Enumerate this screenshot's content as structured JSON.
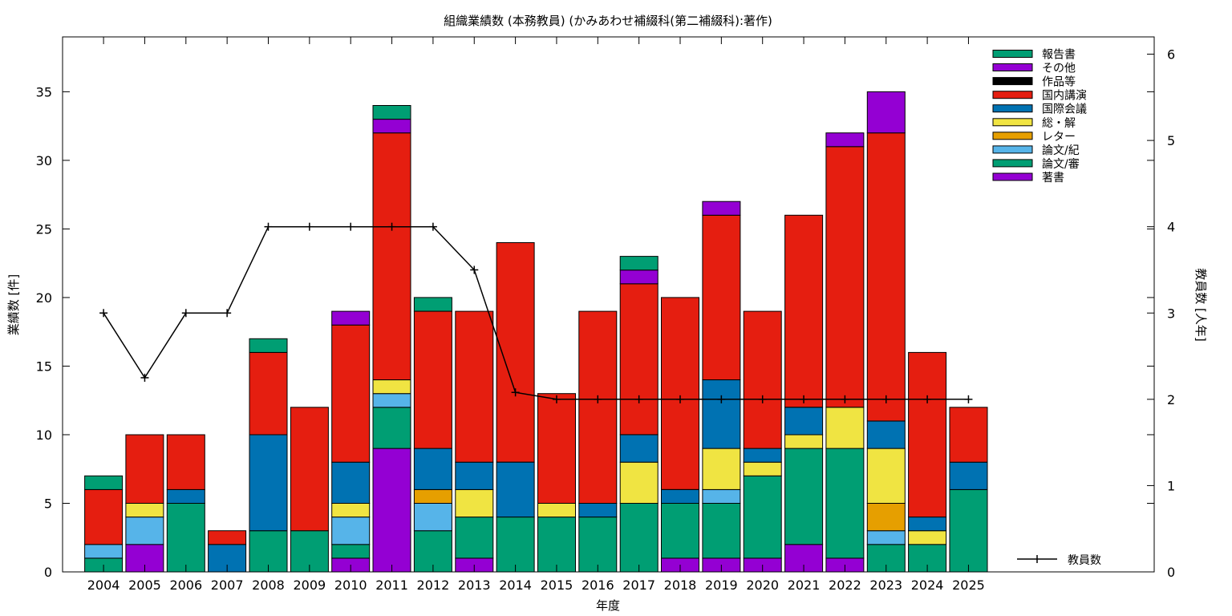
{
  "chart_data": {
    "type": "bar",
    "stacked": true,
    "title": "組織業績数 (本務教員) (かみあわせ補綴科(第二補綴科):著作)",
    "xlabel": "年度",
    "ylabel": "業績数 [件]",
    "y2label": "教員数 [人年]",
    "ylim": [
      0,
      39
    ],
    "y2lim": [
      0,
      6.2
    ],
    "yticks": [
      "0",
      "5",
      "10",
      "15",
      "20",
      "25",
      "30",
      "35"
    ],
    "y2ticks": [
      "0",
      "1",
      "2",
      "3",
      "4",
      "5",
      "6"
    ],
    "categories": [
      "2004",
      "2005",
      "2006",
      "2007",
      "2008",
      "2009",
      "2010",
      "2011",
      "2012",
      "2013",
      "2014",
      "2015",
      "2016",
      "2017",
      "2018",
      "2019",
      "2020",
      "2021",
      "2022",
      "2023",
      "2024",
      "2025"
    ],
    "legend_position": "top-right",
    "series": [
      {
        "name": "著書",
        "color": "#9400d3",
        "values": [
          0,
          2,
          0,
          0,
          0,
          0,
          1,
          9,
          0,
          1,
          0,
          0,
          0,
          0,
          1,
          1,
          1,
          2,
          1,
          0,
          0,
          0
        ]
      },
      {
        "name": "論文/審",
        "color": "#009e73",
        "values": [
          1,
          0,
          5,
          0,
          3,
          3,
          1,
          3,
          3,
          3,
          4,
          4,
          4,
          5,
          4,
          4,
          6,
          7,
          8,
          2,
          2,
          6
        ]
      },
      {
        "name": "論文/紀",
        "color": "#56b4e9",
        "values": [
          1,
          2,
          0,
          0,
          0,
          0,
          2,
          1,
          2,
          0,
          0,
          0,
          0,
          0,
          0,
          1,
          0,
          0,
          0,
          1,
          0,
          0
        ]
      },
      {
        "name": "レター",
        "color": "#e69f00",
        "values": [
          0,
          0,
          0,
          0,
          0,
          0,
          0,
          0,
          1,
          0,
          0,
          0,
          0,
          0,
          0,
          0,
          0,
          0,
          0,
          2,
          0,
          0
        ]
      },
      {
        "name": "総・解",
        "color": "#f0e442",
        "values": [
          0,
          1,
          0,
          0,
          0,
          0,
          1,
          1,
          0,
          2,
          0,
          1,
          0,
          3,
          0,
          3,
          1,
          1,
          3,
          4,
          1,
          0
        ]
      },
      {
        "name": "国際会議",
        "color": "#0072b2",
        "values": [
          0,
          0,
          1,
          2,
          7,
          0,
          3,
          0,
          3,
          2,
          4,
          0,
          1,
          2,
          1,
          5,
          1,
          2,
          0,
          2,
          1,
          2
        ]
      },
      {
        "name": "国内講演",
        "color": "#e51e10",
        "values": [
          4,
          5,
          4,
          1,
          6,
          9,
          10,
          18,
          10,
          11,
          16,
          8,
          14,
          11,
          14,
          12,
          10,
          14,
          19,
          21,
          12,
          4
        ]
      },
      {
        "name": "作品等",
        "color": "#000000",
        "values": [
          0,
          0,
          0,
          0,
          0,
          0,
          0,
          0,
          0,
          0,
          0,
          0,
          0,
          0,
          0,
          0,
          0,
          0,
          0,
          0,
          0,
          0
        ]
      },
      {
        "name": "その他",
        "color": "#9400d3",
        "values": [
          0,
          0,
          0,
          0,
          0,
          0,
          1,
          1,
          0,
          0,
          0,
          0,
          0,
          1,
          0,
          1,
          0,
          0,
          1,
          3,
          0,
          0
        ]
      },
      {
        "name": "報告書",
        "color": "#009e73",
        "values": [
          1,
          0,
          0,
          0,
          1,
          0,
          0,
          1,
          1,
          0,
          0,
          0,
          0,
          1,
          0,
          0,
          0,
          0,
          0,
          0,
          0,
          0
        ]
      }
    ],
    "line": {
      "name": "教員数",
      "color": "#000000",
      "axis": "right",
      "values": [
        3,
        2.25,
        3,
        3,
        4,
        4,
        4,
        4,
        4,
        3.5,
        2.08,
        2,
        2,
        2,
        2,
        2,
        2,
        2,
        2,
        2,
        2,
        2
      ]
    }
  }
}
